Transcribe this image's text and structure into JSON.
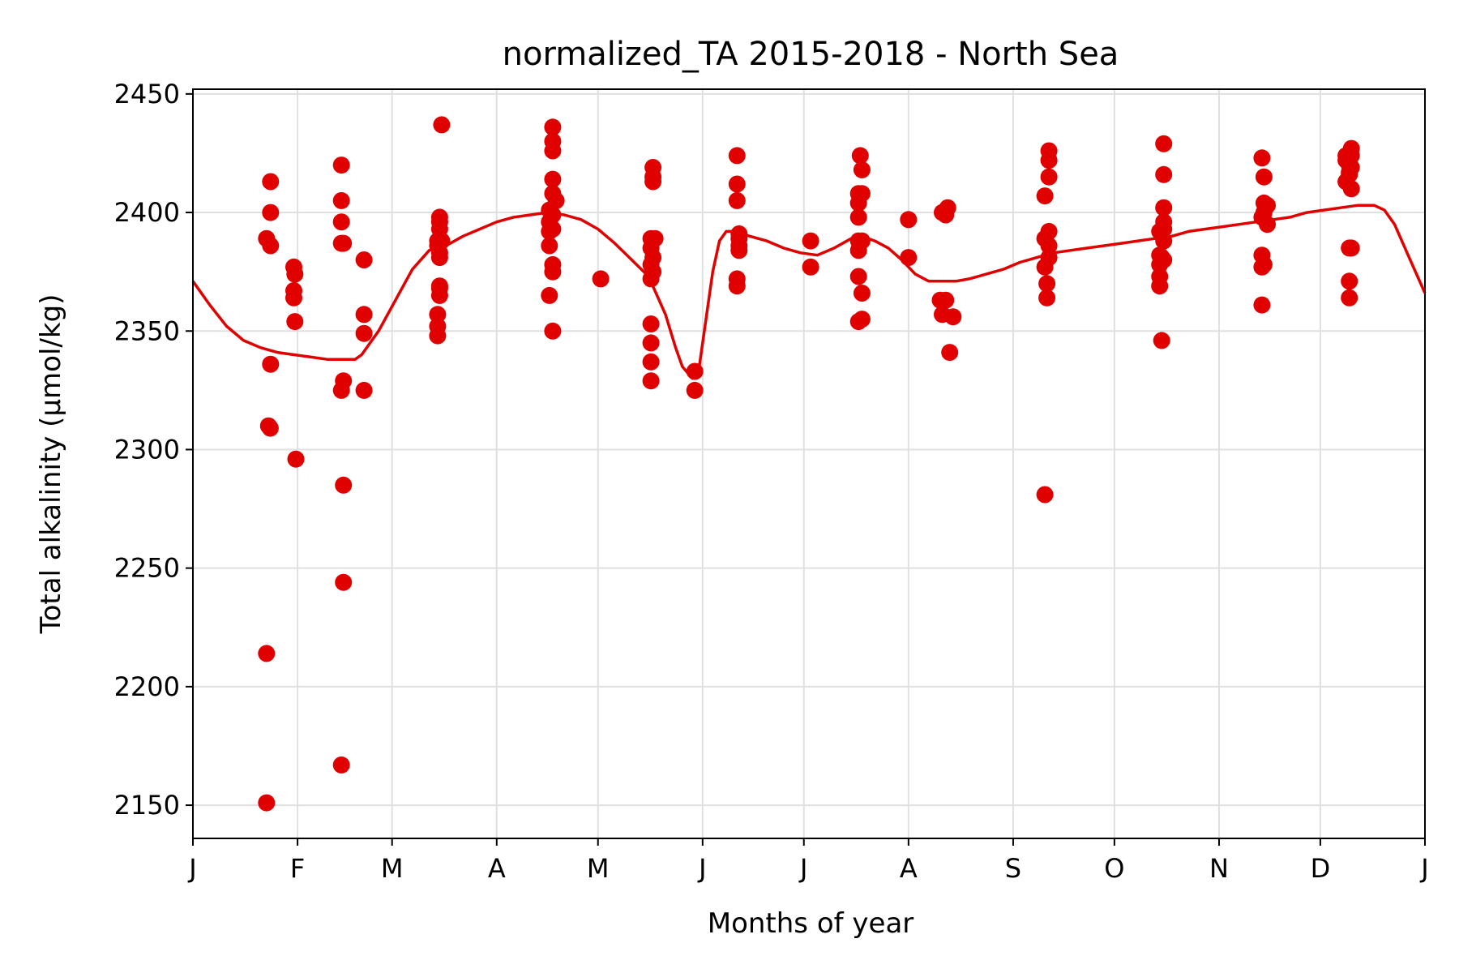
{
  "chart_data": {
    "type": "scatter",
    "title": "normalized_TA 2015-2018 - North Sea",
    "xlabel": "Months of year",
    "ylabel": "Total alkalinity (µmol/kg)",
    "x_unit": "day of year",
    "xlim": [
      0,
      365
    ],
    "ylim": [
      2136,
      2452
    ],
    "x_ticks": [
      {
        "value": 0,
        "label": "J"
      },
      {
        "value": 31,
        "label": "F"
      },
      {
        "value": 59,
        "label": "M"
      },
      {
        "value": 90,
        "label": "A"
      },
      {
        "value": 120,
        "label": "M"
      },
      {
        "value": 151,
        "label": "J"
      },
      {
        "value": 181,
        "label": "J"
      },
      {
        "value": 212,
        "label": "A"
      },
      {
        "value": 243,
        "label": "S"
      },
      {
        "value": 273,
        "label": "O"
      },
      {
        "value": 304,
        "label": "N"
      },
      {
        "value": 334,
        "label": "D"
      },
      {
        "value": 365,
        "label": "J"
      }
    ],
    "y_ticks": [
      2150,
      2200,
      2250,
      2300,
      2350,
      2400,
      2450
    ],
    "grid": true,
    "colors": {
      "points": "#e00000",
      "line": "#e00000",
      "grid": "#e0e0e0"
    },
    "series": [
      {
        "type": "scatter",
        "points": [
          [
            21.8,
            2151
          ],
          [
            21.8,
            2214
          ],
          [
            22.4,
            2310
          ],
          [
            22.9,
            2309
          ],
          [
            23.0,
            2336
          ],
          [
            21.8,
            2389
          ],
          [
            23.0,
            2386
          ],
          [
            23.0,
            2400
          ],
          [
            23.0,
            2413
          ],
          [
            30.5,
            2296
          ],
          [
            30.2,
            2354
          ],
          [
            29.9,
            2364
          ],
          [
            29.9,
            2367
          ],
          [
            30.2,
            2374
          ],
          [
            29.9,
            2377
          ],
          [
            44.0,
            2167
          ],
          [
            44.6,
            2244
          ],
          [
            44.6,
            2285
          ],
          [
            44.0,
            2325
          ],
          [
            44.6,
            2329
          ],
          [
            44.0,
            2387
          ],
          [
            44.6,
            2387
          ],
          [
            44.0,
            2396
          ],
          [
            44.0,
            2405
          ],
          [
            44.0,
            2420
          ],
          [
            50.7,
            2325
          ],
          [
            50.7,
            2349
          ],
          [
            50.7,
            2357
          ],
          [
            50.7,
            2380
          ],
          [
            72.5,
            2348
          ],
          [
            72.5,
            2352
          ],
          [
            72.5,
            2357
          ],
          [
            73.1,
            2365
          ],
          [
            73.1,
            2368
          ],
          [
            73.1,
            2369
          ],
          [
            73.1,
            2381
          ],
          [
            73.1,
            2383
          ],
          [
            72.5,
            2386
          ],
          [
            72.5,
            2388
          ],
          [
            73.7,
            2388
          ],
          [
            73.1,
            2393
          ],
          [
            73.1,
            2396
          ],
          [
            73.1,
            2398
          ],
          [
            73.7,
            2437
          ],
          [
            106.6,
            2350
          ],
          [
            105.6,
            2365
          ],
          [
            106.6,
            2375
          ],
          [
            106.6,
            2378
          ],
          [
            105.6,
            2386
          ],
          [
            105.6,
            2392
          ],
          [
            106.6,
            2393
          ],
          [
            105.6,
            2396
          ],
          [
            106.6,
            2399
          ],
          [
            105.6,
            2401
          ],
          [
            107.6,
            2405
          ],
          [
            106.6,
            2408
          ],
          [
            106.6,
            2414
          ],
          [
            106.6,
            2426
          ],
          [
            106.6,
            2430
          ],
          [
            106.6,
            2436
          ],
          [
            120.8,
            2372
          ],
          [
            135.7,
            2329
          ],
          [
            135.7,
            2337
          ],
          [
            135.7,
            2345
          ],
          [
            135.7,
            2353
          ],
          [
            135.7,
            2372
          ],
          [
            136.3,
            2375
          ],
          [
            135.7,
            2378
          ],
          [
            136.3,
            2381
          ],
          [
            135.7,
            2385
          ],
          [
            135.7,
            2389
          ],
          [
            136.9,
            2389
          ],
          [
            136.3,
            2413
          ],
          [
            136.3,
            2415
          ],
          [
            136.3,
            2419
          ],
          [
            148.7,
            2325
          ],
          [
            148.7,
            2333
          ],
          [
            161.2,
            2369
          ],
          [
            161.2,
            2372
          ],
          [
            161.8,
            2384
          ],
          [
            161.8,
            2386
          ],
          [
            161.8,
            2389
          ],
          [
            161.8,
            2391
          ],
          [
            161.2,
            2405
          ],
          [
            161.2,
            2412
          ],
          [
            161.2,
            2424
          ],
          [
            183.0,
            2377
          ],
          [
            183.0,
            2388
          ],
          [
            197.2,
            2354
          ],
          [
            198.2,
            2355
          ],
          [
            198.2,
            2366
          ],
          [
            197.2,
            2373
          ],
          [
            197.2,
            2384
          ],
          [
            197.2,
            2388
          ],
          [
            198.2,
            2388
          ],
          [
            197.2,
            2398
          ],
          [
            197.2,
            2404
          ],
          [
            197.2,
            2408
          ],
          [
            198.2,
            2408
          ],
          [
            198.2,
            2418
          ],
          [
            197.7,
            2424
          ],
          [
            212.0,
            2381
          ],
          [
            212.0,
            2397
          ],
          [
            221.4,
            2363
          ],
          [
            222.0,
            2357
          ],
          [
            223.0,
            2363
          ],
          [
            222.0,
            2400
          ],
          [
            223.0,
            2399
          ],
          [
            223.6,
            2402
          ],
          [
            224.2,
            2341
          ],
          [
            225.2,
            2356
          ],
          [
            252.4,
            2281
          ],
          [
            252.4,
            2407
          ],
          [
            252.4,
            2389
          ],
          [
            252.4,
            2377
          ],
          [
            253.0,
            2364
          ],
          [
            253.0,
            2370
          ],
          [
            253.6,
            2381
          ],
          [
            253.6,
            2386
          ],
          [
            253.6,
            2392
          ],
          [
            253.6,
            2415
          ],
          [
            253.6,
            2422
          ],
          [
            253.6,
            2426
          ],
          [
            287.0,
            2346
          ],
          [
            286.4,
            2369
          ],
          [
            286.4,
            2373
          ],
          [
            286.4,
            2378
          ],
          [
            286.4,
            2382
          ],
          [
            287.0,
            2381
          ],
          [
            287.6,
            2380
          ],
          [
            286.4,
            2392
          ],
          [
            287.6,
            2388
          ],
          [
            287.6,
            2393
          ],
          [
            287.6,
            2396
          ],
          [
            287.6,
            2402
          ],
          [
            287.6,
            2416
          ],
          [
            287.6,
            2429
          ],
          [
            316.7,
            2361
          ],
          [
            316.7,
            2377
          ],
          [
            316.7,
            2382
          ],
          [
            316.7,
            2398
          ],
          [
            317.3,
            2400
          ],
          [
            317.3,
            2404
          ],
          [
            317.3,
            2415
          ],
          [
            316.7,
            2423
          ],
          [
            318.3,
            2395
          ],
          [
            318.3,
            2403
          ],
          [
            317.3,
            2378
          ],
          [
            342.6,
            2364
          ],
          [
            342.6,
            2371
          ],
          [
            342.6,
            2385
          ],
          [
            343.2,
            2385
          ],
          [
            341.6,
            2413
          ],
          [
            342.6,
            2417
          ],
          [
            343.2,
            2410
          ],
          [
            341.6,
            2422
          ],
          [
            342.6,
            2420
          ],
          [
            343.2,
            2419
          ],
          [
            343.2,
            2424
          ],
          [
            343.2,
            2427
          ],
          [
            341.6,
            2424
          ],
          [
            342.6,
            2416
          ]
        ]
      },
      {
        "type": "line",
        "points": [
          [
            0,
            2371
          ],
          [
            5,
            2361
          ],
          [
            10,
            2352
          ],
          [
            15,
            2346
          ],
          [
            20,
            2343
          ],
          [
            25,
            2341
          ],
          [
            30,
            2340
          ],
          [
            35,
            2339
          ],
          [
            40,
            2338
          ],
          [
            45,
            2338
          ],
          [
            48,
            2338
          ],
          [
            50,
            2340
          ],
          [
            55,
            2350
          ],
          [
            60,
            2363
          ],
          [
            65,
            2376
          ],
          [
            70,
            2384
          ],
          [
            75,
            2386
          ],
          [
            80,
            2390
          ],
          [
            85,
            2393
          ],
          [
            90,
            2396
          ],
          [
            95,
            2398
          ],
          [
            100,
            2399
          ],
          [
            105,
            2400
          ],
          [
            110,
            2399
          ],
          [
            115,
            2397
          ],
          [
            120,
            2393
          ],
          [
            125,
            2387
          ],
          [
            130,
            2380
          ],
          [
            135,
            2373
          ],
          [
            140,
            2357
          ],
          [
            143,
            2343
          ],
          [
            145,
            2335
          ],
          [
            148,
            2330
          ],
          [
            150,
            2335
          ],
          [
            152,
            2355
          ],
          [
            154,
            2375
          ],
          [
            156,
            2388
          ],
          [
            158,
            2392
          ],
          [
            160,
            2392
          ],
          [
            165,
            2390
          ],
          [
            170,
            2388
          ],
          [
            175,
            2385
          ],
          [
            180,
            2383
          ],
          [
            185,
            2382
          ],
          [
            190,
            2385
          ],
          [
            195,
            2389
          ],
          [
            198,
            2390
          ],
          [
            202,
            2388
          ],
          [
            206,
            2385
          ],
          [
            210,
            2380
          ],
          [
            214,
            2374
          ],
          [
            218,
            2371
          ],
          [
            222,
            2371
          ],
          [
            226,
            2371
          ],
          [
            230,
            2372
          ],
          [
            235,
            2374
          ],
          [
            240,
            2376
          ],
          [
            245,
            2379
          ],
          [
            250,
            2381
          ],
          [
            255,
            2383
          ],
          [
            260,
            2384
          ],
          [
            265,
            2385
          ],
          [
            270,
            2386
          ],
          [
            275,
            2387
          ],
          [
            280,
            2388
          ],
          [
            285,
            2389
          ],
          [
            290,
            2390
          ],
          [
            295,
            2392
          ],
          [
            300,
            2393
          ],
          [
            305,
            2394
          ],
          [
            310,
            2395
          ],
          [
            315,
            2396
          ],
          [
            320,
            2397
          ],
          [
            325,
            2398
          ],
          [
            330,
            2400
          ],
          [
            335,
            2401
          ],
          [
            340,
            2402
          ],
          [
            345,
            2403
          ],
          [
            350,
            2403
          ],
          [
            353,
            2401
          ],
          [
            356,
            2395
          ],
          [
            360,
            2382
          ],
          [
            365,
            2366
          ]
        ]
      }
    ]
  }
}
